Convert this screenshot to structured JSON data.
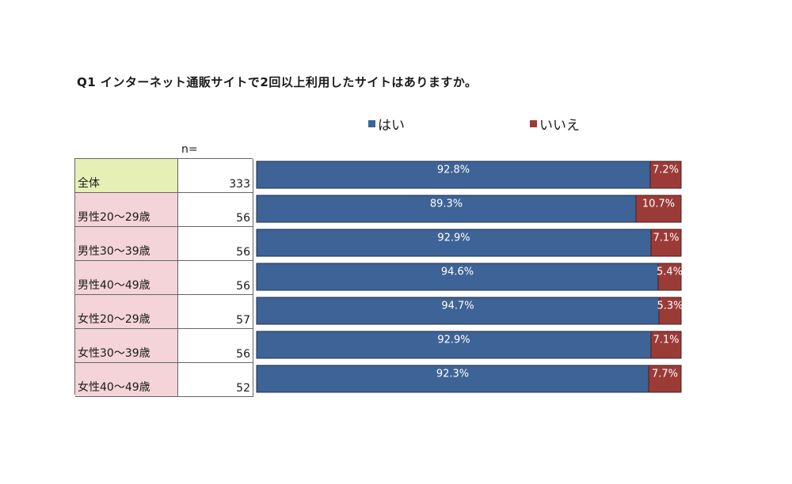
{
  "title": "Q1 インターネット通販サイトで2回以上利用したサイトはありますか。",
  "n_header": "n=",
  "colors": {
    "yes": "#3e6396",
    "no": "#9b3b38",
    "total_cell": "#e6efb6",
    "group_cell": "#f4d4d8"
  },
  "chart_data": {
    "type": "bar",
    "orientation": "horizontal",
    "stacked": true,
    "percent_stacked": true,
    "title": "Q1 インターネット通販サイトで2回以上利用したサイトはありますか。",
    "legend": [
      "はい",
      "いいえ"
    ],
    "legend_position": "top",
    "categories": [
      "全体",
      "男性20～29歳",
      "男性30～39歳",
      "男性40～49歳",
      "女性20～29歳",
      "女性30～39歳",
      "女性40～49歳"
    ],
    "n": [
      "333",
      "56",
      "56",
      "56",
      "57",
      "56",
      "52"
    ],
    "series": [
      {
        "name": "はい",
        "values": [
          92.8,
          89.3,
          92.9,
          94.6,
          94.7,
          92.9,
          92.3
        ],
        "labels": [
          "92.8%",
          "89.3%",
          "92.9%",
          "94.6%",
          "94.7%",
          "92.9%",
          "92.3%"
        ]
      },
      {
        "name": "いいえ",
        "values": [
          7.2,
          10.7,
          7.1,
          5.4,
          5.3,
          7.1,
          7.7
        ],
        "labels": [
          "7.2%",
          "10.7%",
          "7.1%",
          "5.4%",
          "5.3%",
          "7.1%",
          "7.7%"
        ]
      }
    ],
    "xlim": [
      0,
      100
    ]
  }
}
